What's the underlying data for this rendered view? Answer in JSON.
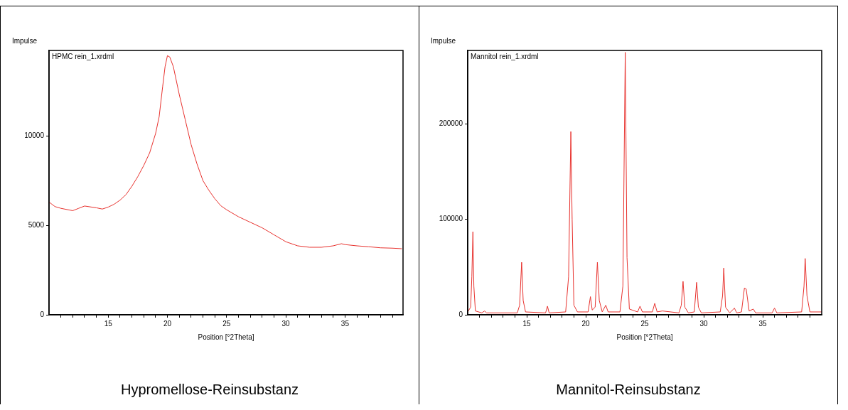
{
  "chart_data": [
    {
      "type": "line",
      "title": "Hypromellose-Reinsubstanz",
      "ylabel": "Impulse",
      "xlabel": "Position [°2Theta]",
      "annotations": [
        "HPMC rein_1.xrdml"
      ],
      "color": "#e8322e",
      "marker": "none",
      "grid": false,
      "legend": false,
      "xlim": [
        10,
        39.9
      ],
      "ylim": [
        0,
        14800
      ],
      "xticks": [
        {
          "value": 11,
          "label": null
        },
        {
          "value": 12,
          "label": null
        },
        {
          "value": 13,
          "label": null
        },
        {
          "value": 14,
          "label": null
        },
        15,
        {
          "value": 16,
          "label": null
        },
        {
          "value": 17,
          "label": null
        },
        {
          "value": 18,
          "label": null
        },
        {
          "value": 19,
          "label": null
        },
        20,
        {
          "value": 21,
          "label": null
        },
        {
          "value": 22,
          "label": null
        },
        {
          "value": 23,
          "label": null
        },
        {
          "value": 24,
          "label": null
        },
        25,
        {
          "value": 26,
          "label": null
        },
        {
          "value": 27,
          "label": null
        },
        {
          "value": 28,
          "label": null
        },
        {
          "value": 29,
          "label": null
        },
        30,
        {
          "value": 31,
          "label": null
        },
        {
          "value": 32,
          "label": null
        },
        {
          "value": 33,
          "label": null
        },
        {
          "value": 34,
          "label": null
        },
        35,
        {
          "value": 36,
          "label": null
        },
        {
          "value": 37,
          "label": null
        },
        {
          "value": 38,
          "label": null
        },
        {
          "value": 39,
          "label": null
        }
      ],
      "yticks": [
        0,
        5000,
        10000
      ],
      "x": [
        10,
        10.5,
        11,
        12,
        12.5,
        13,
        14,
        14.5,
        15,
        15.5,
        16,
        16.5,
        17,
        17.5,
        18,
        18.5,
        19,
        19.3,
        19.6,
        19.8,
        20,
        20.2,
        20.5,
        21,
        21.5,
        22,
        22.5,
        23,
        23.5,
        24,
        24.5,
        25,
        26,
        27,
        28,
        29,
        30,
        31,
        32,
        33,
        34,
        34.7,
        35,
        36,
        37,
        38,
        39,
        39.8
      ],
      "values": [
        6310,
        6060,
        5960,
        5830,
        5960,
        6090,
        5990,
        5920,
        6030,
        6190,
        6420,
        6730,
        7200,
        7740,
        8360,
        9070,
        10150,
        11090,
        12800,
        13890,
        14510,
        14430,
        13890,
        12330,
        10930,
        9530,
        8440,
        7510,
        6970,
        6500,
        6110,
        5880,
        5490,
        5180,
        4870,
        4480,
        4090,
        3860,
        3780,
        3780,
        3860,
        3980,
        3930,
        3860,
        3810,
        3750,
        3730,
        3700
      ]
    },
    {
      "type": "line",
      "title": "Mannitol-Reinsubstanz",
      "ylabel": "Impulse",
      "xlabel": "Position [°2Theta]",
      "annotations": [
        "Mannitol rein_1.xrdml"
      ],
      "color": "#e8322e",
      "marker": "none",
      "grid": false,
      "legend": false,
      "xlim": [
        10,
        40
      ],
      "ylim": [
        0,
        277000
      ],
      "xticks": [
        {
          "value": 11,
          "label": null
        },
        {
          "value": 12,
          "label": null
        },
        {
          "value": 13,
          "label": null
        },
        {
          "value": 14,
          "label": null
        },
        15,
        {
          "value": 16,
          "label": null
        },
        {
          "value": 17,
          "label": null
        },
        {
          "value": 18,
          "label": null
        },
        {
          "value": 19,
          "label": null
        },
        20,
        {
          "value": 21,
          "label": null
        },
        {
          "value": 22,
          "label": null
        },
        {
          "value": 23,
          "label": null
        },
        {
          "value": 24,
          "label": null
        },
        25,
        {
          "value": 26,
          "label": null
        },
        {
          "value": 27,
          "label": null
        },
        {
          "value": 28,
          "label": null
        },
        {
          "value": 29,
          "label": null
        },
        30,
        {
          "value": 31,
          "label": null
        },
        {
          "value": 32,
          "label": null
        },
        {
          "value": 33,
          "label": null
        },
        {
          "value": 34,
          "label": null
        },
        35,
        {
          "value": 36,
          "label": null
        },
        {
          "value": 37,
          "label": null
        },
        {
          "value": 38,
          "label": null
        },
        {
          "value": 39,
          "label": null
        }
      ],
      "yticks": [
        0,
        100000,
        200000
      ],
      "x": [
        10,
        10.25,
        10.35,
        10.44,
        10.52,
        10.65,
        11.2,
        11.43,
        11.6,
        14.2,
        14.4,
        14.57,
        14.7,
        14.9,
        16.6,
        16.76,
        16.9,
        18.3,
        18.55,
        18.74,
        18.85,
        19,
        19.3,
        20.2,
        20.4,
        20.55,
        20.8,
        20.99,
        21.15,
        21.4,
        21.7,
        21.9,
        22.9,
        23.15,
        23.35,
        23.5,
        23.7,
        24.4,
        24.6,
        24.8,
        25.65,
        25.85,
        26.05,
        26.5,
        27.9,
        28.1,
        28.25,
        28.4,
        28.7,
        29.2,
        29.4,
        29.55,
        29.8,
        31.4,
        31.6,
        31.7,
        31.85,
        32.2,
        32.6,
        32.8,
        33.2,
        33.45,
        33.6,
        33.85,
        34.2,
        34.4,
        35.8,
        36,
        36.2,
        38.3,
        38.5,
        38.6,
        38.75,
        39,
        40
      ],
      "values": [
        3000,
        8000,
        40000,
        87000,
        30000,
        4000,
        2000,
        4000,
        2000,
        2000,
        10000,
        55000,
        15000,
        3000,
        2000,
        9000,
        2000,
        3000,
        40000,
        192000,
        100000,
        10000,
        3000,
        3000,
        19000,
        5000,
        8000,
        55000,
        15000,
        3000,
        10000,
        3000,
        3000,
        30000,
        275000,
        60000,
        6000,
        3000,
        9000,
        3000,
        3000,
        12000,
        3000,
        4000,
        2000,
        10000,
        35000,
        8000,
        2000,
        3000,
        34000,
        8000,
        2000,
        3000,
        20000,
        49000,
        8000,
        2000,
        7000,
        2000,
        3000,
        28000,
        27000,
        4000,
        6000,
        2000,
        2000,
        7000,
        2000,
        3000,
        30000,
        59000,
        20000,
        3000,
        3000
      ]
    }
  ]
}
